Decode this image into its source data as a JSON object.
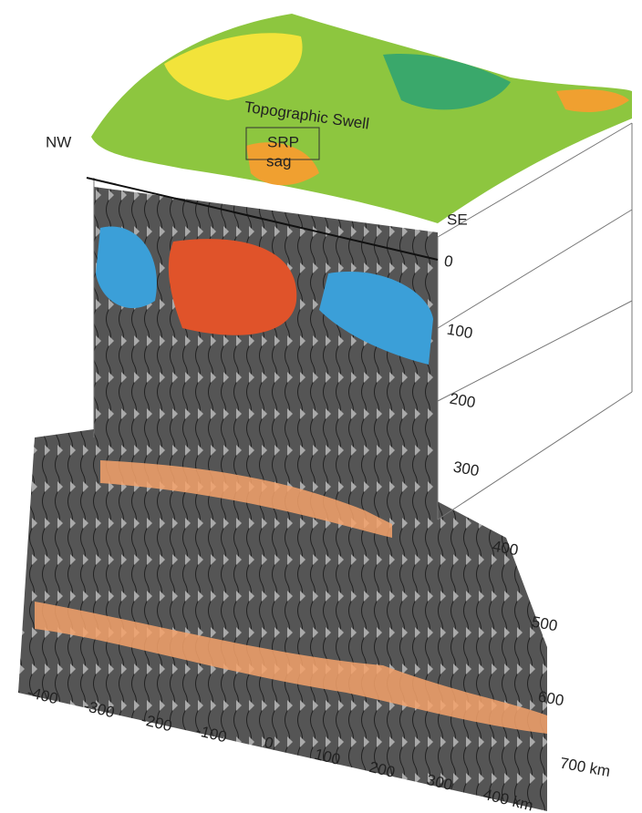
{
  "surface_labels": {
    "swell": "Topographic Swell",
    "srp": "SRP",
    "sag": "sag"
  },
  "directions": {
    "nw": "NW",
    "se": "SE"
  },
  "depth_labels": [
    "0",
    "100",
    "200",
    "300",
    "400",
    "500",
    "600",
    "700 km"
  ],
  "distance_labels": [
    "-400",
    "-300",
    "-200",
    "-100",
    "0",
    "100",
    "200",
    "300",
    "400 km"
  ]
}
